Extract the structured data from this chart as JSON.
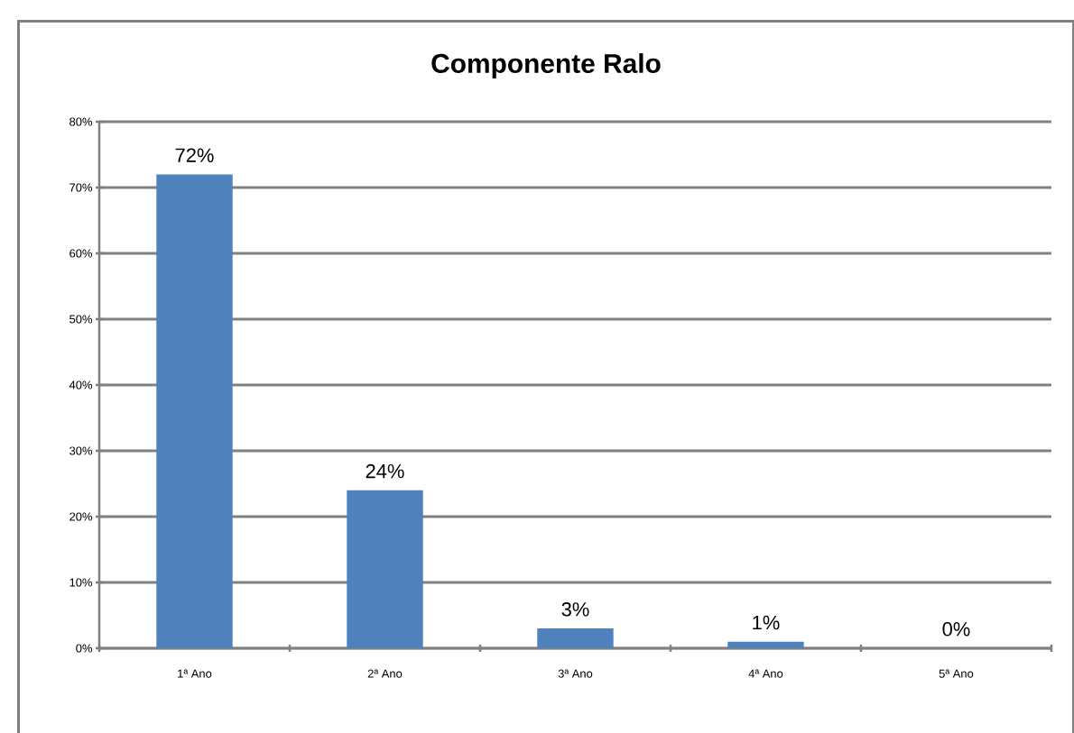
{
  "chart_data": {
    "type": "bar",
    "title": "Componente Ralo",
    "categories": [
      "1ª Ano",
      "2ª Ano",
      "3ª Ano",
      "4ª Ano",
      "5ª Ano"
    ],
    "values": [
      72,
      24,
      3,
      1,
      0
    ],
    "value_labels": [
      "72%",
      "24%",
      "3%",
      "1%",
      "0%"
    ],
    "color": "#4f81bd",
    "ylim": [
      0,
      80
    ],
    "yticks": [
      {
        "value": 0,
        "label": "0%"
      },
      {
        "value": 10,
        "label": "10%"
      },
      {
        "value": 20,
        "label": "20%"
      },
      {
        "value": 30,
        "label": "30%"
      },
      {
        "value": 40,
        "label": "40%"
      },
      {
        "value": 50,
        "label": "50%"
      },
      {
        "value": 60,
        "label": "60%"
      },
      {
        "value": 70,
        "label": "70%"
      },
      {
        "value": 80,
        "label": "80%"
      }
    ],
    "grid": "y"
  }
}
